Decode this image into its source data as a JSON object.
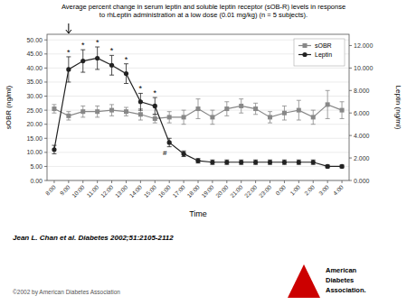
{
  "chart_data": {
    "type": "line",
    "title": "Average percent change in serum leptin and soluble leptin receptor (sOB-R) levels in response\nto rhLeptin administration at a low dose (0.01 mg/kg) (n = 5 subjects).",
    "xlabel": "Time",
    "ylabel": "sOBR (ng/ml)",
    "y2label": "Leptin (ng/ml)",
    "categories": [
      "8:00",
      "9:00",
      "10:00",
      "11:00",
      "12:00",
      "13:00",
      "14:00",
      "15:00",
      "16:00",
      "17:00",
      "18:00",
      "19:00",
      "20:00",
      "21:00",
      "22:00",
      "23:00",
      "0:00",
      "1:00",
      "2:00",
      "3:00",
      "4:00"
    ],
    "series": [
      {
        "name": "sOBR",
        "color": "#888888",
        "marker": "square",
        "axis": "y",
        "values": [
          25.5,
          23.0,
          24.5,
          24.5,
          25.0,
          24.5,
          23.5,
          22.0,
          22.5,
          22.5,
          25.5,
          22.5,
          25.5,
          26.5,
          25.5,
          22.5,
          24.0,
          25.0,
          22.5,
          27.0,
          25.0
        ],
        "errors": [
          1.5,
          1.5,
          2.0,
          2.0,
          2.0,
          1.5,
          2.0,
          1.5,
          2.0,
          2.5,
          3.5,
          2.5,
          2.5,
          2.5,
          2.0,
          2.0,
          2.5,
          3.5,
          2.5,
          5.0,
          3.0
        ]
      },
      {
        "name": "Leptin",
        "color": "#222222",
        "marker": "circle",
        "axis": "y2",
        "values": [
          2.75,
          9.875,
          10.625,
          10.875,
          10.25,
          9.5,
          7.0,
          6.625,
          3.375,
          2.375,
          1.75,
          1.625,
          1.625,
          1.625,
          1.625,
          1.625,
          1.625,
          1.625,
          1.625,
          1.25,
          1.25
        ],
        "errors": [
          0.375,
          1.125,
          1.0,
          1.0,
          0.875,
          0.875,
          0.75,
          0.75,
          0.375,
          0.25,
          0.2,
          0.2,
          0.2,
          0.2,
          0.2,
          0.2,
          0.2,
          0.2,
          0.2,
          0.125,
          0.125
        ]
      }
    ],
    "ylim": [
      0,
      52
    ],
    "yticks": [
      {
        "value": 0,
        "label": "0.00"
      },
      {
        "value": 5,
        "label": "5.00"
      },
      {
        "value": 10,
        "label": "10.00"
      },
      {
        "value": 15,
        "label": "15.00"
      },
      {
        "value": 20,
        "label": "20.00"
      },
      {
        "value": 25,
        "label": "25.00"
      },
      {
        "value": 30,
        "label": "30.00"
      },
      {
        "value": 35,
        "label": "35.00"
      },
      {
        "value": 40,
        "label": "40.00"
      },
      {
        "value": 45,
        "label": "45.00"
      },
      {
        "value": 50,
        "label": "50.00"
      }
    ],
    "y2lim": [
      0,
      13.0
    ],
    "y2ticks": [
      {
        "value": 0,
        "label": "0.000"
      },
      {
        "value": 2,
        "label": "2.000"
      },
      {
        "value": 4,
        "label": "4.000"
      },
      {
        "value": 6,
        "label": "6.000"
      },
      {
        "value": 8,
        "label": "8.000"
      },
      {
        "value": 10,
        "label": "10.000"
      },
      {
        "value": 12,
        "label": "12.000"
      }
    ],
    "grid": true,
    "legend": "upper right",
    "annotations": [
      {
        "x": "9:00",
        "marker": "arrow"
      },
      {
        "text": "*",
        "x": "9:00",
        "series": "Leptin",
        "anchor": "above"
      },
      {
        "text": "*",
        "x": "10:00",
        "series": "Leptin",
        "anchor": "above"
      },
      {
        "text": "*",
        "x": "11:00",
        "series": "Leptin",
        "anchor": "above"
      },
      {
        "text": "*",
        "x": "12:00",
        "series": "Leptin",
        "anchor": "above"
      },
      {
        "text": "*",
        "x": "13:00",
        "series": "Leptin",
        "anchor": "above"
      },
      {
        "text": "*",
        "x": "14:00",
        "series": "Leptin",
        "anchor": "above"
      },
      {
        "text": "*",
        "x": "15:00",
        "series": "Leptin",
        "anchor": "above"
      },
      {
        "text": "#",
        "x": "16:00",
        "series": "Leptin",
        "anchor": "below"
      }
    ],
    "caption": "Jean L. Chan et al. Diabetes 2002;51:2105-2112",
    "copyright": "©2002 by American Diabetes Association",
    "logo_text": [
      "American",
      "Diabetes",
      "Association."
    ]
  }
}
